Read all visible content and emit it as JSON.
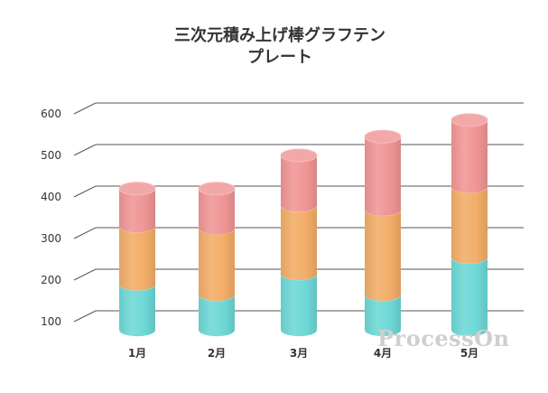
{
  "chart_data": {
    "type": "bar",
    "subtype": "3d-stacked-cylinder",
    "title_line1": "三次元積み上げ棒グラフテン",
    "title_line2": "プレート",
    "categories": [
      "1月",
      "2月",
      "3月",
      "4月",
      "5月"
    ],
    "series": [
      {
        "color": "#6dd8d6",
        "values": [
          110,
          85,
          135,
          85,
          175
        ]
      },
      {
        "color": "#f2ad68",
        "values": [
          140,
          160,
          165,
          205,
          170
        ]
      },
      {
        "color": "#f09595",
        "values": [
          90,
          95,
          120,
          175,
          160
        ]
      }
    ],
    "y_ticks": [
      "100",
      "200",
      "300",
      "400",
      "500",
      "600"
    ],
    "ylim": [
      100,
      600
    ],
    "base": 80,
    "grid": true
  },
  "watermark": "ProcessOn"
}
